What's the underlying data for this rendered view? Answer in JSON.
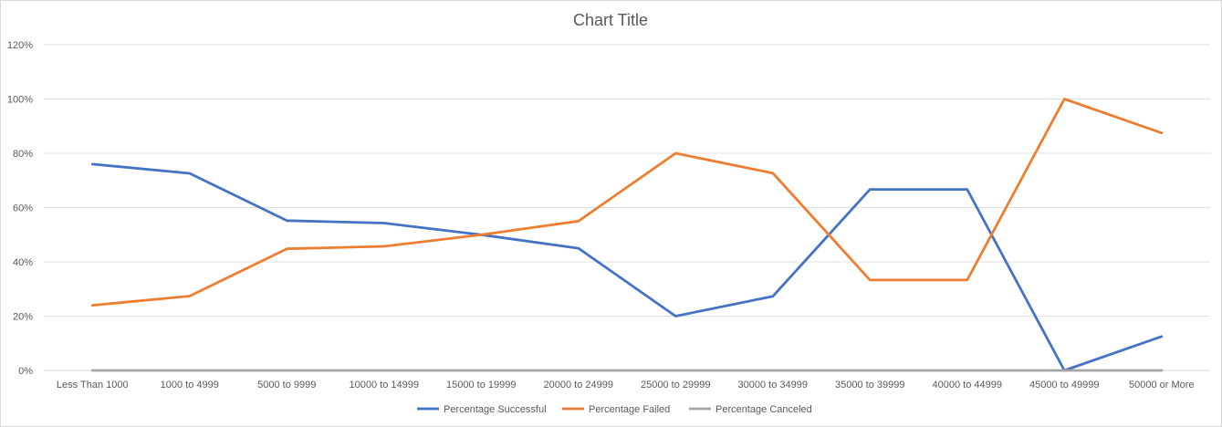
{
  "chart_data": {
    "type": "line",
    "title": "Chart Title",
    "categories": [
      "Less Than 1000",
      "1000 to 4999",
      "5000 to 9999",
      "10000 to 14999",
      "15000 to 19999",
      "20000 to 24999",
      "25000 to 29999",
      "30000 to 34999",
      "35000 to 39999",
      "40000 to 44999",
      "45000 to 49999",
      "50000 or More"
    ],
    "y_ticks": [
      "0%",
      "20%",
      "40%",
      "60%",
      "80%",
      "100%",
      "120%"
    ],
    "ylim": [
      0,
      120
    ],
    "grid": true,
    "legend_position": "bottom",
    "series": [
      {
        "name": "Percentage Successful",
        "color": "#4472c4",
        "values": [
          76,
          72.6,
          55.2,
          54.3,
          50,
          45,
          20,
          27.3,
          66.7,
          66.7,
          0,
          12.5
        ]
      },
      {
        "name": "Percentage Failed",
        "color": "#ed7d31",
        "values": [
          24,
          27.4,
          44.8,
          45.7,
          50,
          55,
          80,
          72.7,
          33.3,
          33.3,
          100,
          87.5
        ]
      },
      {
        "name": "Percentage Canceled",
        "color": "#a5a5a5",
        "values": [
          0,
          0,
          0,
          0,
          0,
          0,
          0,
          0,
          0,
          0,
          0,
          0
        ]
      }
    ]
  }
}
